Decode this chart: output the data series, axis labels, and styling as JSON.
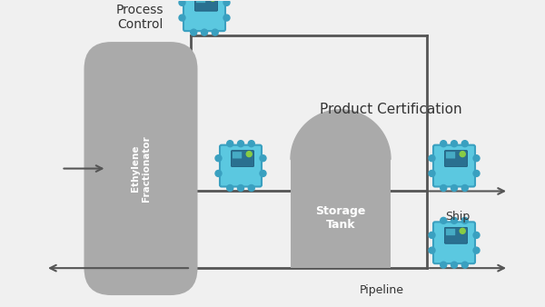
{
  "background_color": "#f0f0f0",
  "line_color": "#555555",
  "gray_fill": "#aaaaaa",
  "device_body": "#5bc8e0",
  "device_border": "#3aa0c0",
  "device_screen": "#2a7090",
  "device_screen_inner": "#4abcd4",
  "arrow_color": "#555555",
  "text_color": "#333333",
  "white": "#ffffff",
  "labels": {
    "process_control": "Process\nControl",
    "product_certification": "Product Certification",
    "ethylene_fractionator": "Ethylene\nFractionator",
    "storage_tank": "Storage\nTank",
    "ship": "Ship",
    "pipeline": "Pipeline"
  },
  "font_size_title": 10,
  "font_size_label": 9,
  "font_size_small": 7.5
}
